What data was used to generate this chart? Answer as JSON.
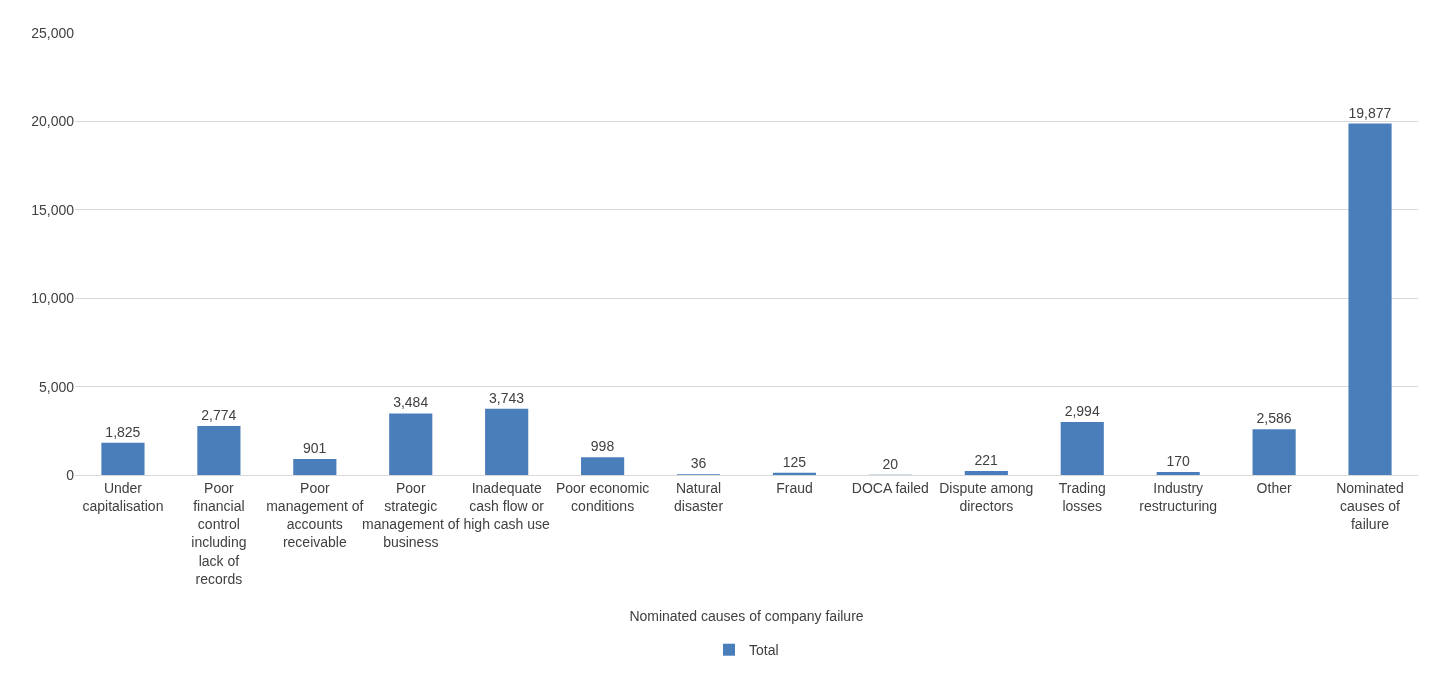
{
  "chart_data": {
    "type": "bar",
    "xlabel": "Nominated causes of company failure",
    "categories": [
      "Under capitalisation",
      "Poor financial control including lack of records",
      "Poor management of accounts receivable",
      "Poor strategic management of business",
      "Inadequate cash flow or high cash use",
      "Poor economic conditions",
      "Natural disaster",
      "Fraud",
      "DOCA failed",
      "Dispute among directors",
      "Trading losses",
      "Industry restructuring",
      "Other",
      "Nominated causes of failure"
    ],
    "series": [
      {
        "name": "Total",
        "color": "#4a7ebb",
        "values": [
          1825,
          2774,
          901,
          3484,
          3743,
          998,
          36,
          125,
          20,
          221,
          2994,
          170,
          2586,
          19877
        ],
        "value_labels": [
          "1,825",
          "2,774",
          "901",
          "3,484",
          "3,743",
          "998",
          "36",
          "125",
          "20",
          "221",
          "2,994",
          "170",
          "2,586",
          "19,877"
        ]
      }
    ],
    "ylim": [
      0,
      25000
    ],
    "yticks": [
      {
        "value": 0,
        "label": "0"
      },
      {
        "value": 5000,
        "label": "5,000"
      },
      {
        "value": 10000,
        "label": "10,000"
      },
      {
        "value": 15000,
        "label": "15,000"
      },
      {
        "value": 20000,
        "label": "20,000"
      },
      {
        "value": 25000,
        "label": "25,000"
      }
    ],
    "grid": "y",
    "legend": "bottom"
  }
}
